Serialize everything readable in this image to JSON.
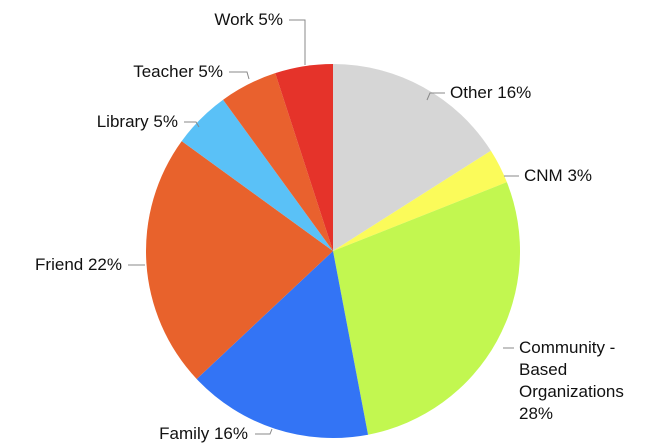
{
  "chart_data": {
    "type": "pie",
    "categories": [
      "Other",
      "CNM",
      "Community - Based Organizations",
      "Family",
      "Friend",
      "Library",
      "Teacher",
      "Work"
    ],
    "values": [
      16,
      3,
      28,
      16,
      22,
      5,
      5,
      5
    ],
    "value_labels": [
      "16%",
      "3%",
      "28%",
      "16%",
      "22%",
      "5%",
      "5%",
      "5%"
    ],
    "colors": [
      "#d6d6d6",
      "#fbfb5a",
      "#c2f750",
      "#3374f5",
      "#e8622c",
      "#5ac1f7",
      "#e9612e",
      "#e5332a"
    ]
  }
}
